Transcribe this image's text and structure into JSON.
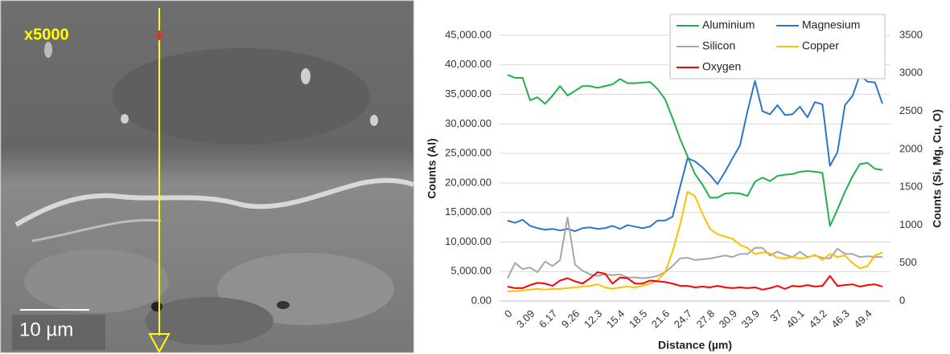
{
  "image": {
    "magnification": "x5000",
    "scale_bar": "10 µm"
  },
  "chart_data": {
    "type": "line",
    "y_label": "Counts (Al)",
    "y2_label": "Counts (Si, Mg, Cu, O)",
    "x_label": "Distance (µm)",
    "categories": [
      "0",
      null,
      null,
      "3.09",
      null,
      null,
      "6.17",
      null,
      null,
      "9.26",
      null,
      null,
      "12.3",
      null,
      null,
      "15.4",
      null,
      null,
      "18.5",
      null,
      null,
      "21.6",
      null,
      null,
      "24.7",
      null,
      null,
      "27.8",
      null,
      null,
      "30.9",
      null,
      null,
      "33.9",
      null,
      null,
      "37",
      null,
      null,
      "40.1",
      null,
      null,
      "43.2",
      null,
      null,
      "46.3",
      null,
      null,
      "49.4",
      null,
      null
    ],
    "series": [
      {
        "name": "Aluminium",
        "color": "#21b04b",
        "values": [
          38300,
          37800,
          37800,
          34000,
          34500,
          33400,
          34800,
          36400,
          34800,
          35600,
          36400,
          36400,
          36100,
          36400,
          36700,
          37600,
          36900,
          36900,
          37000,
          37100,
          35900,
          34200,
          31000,
          27500,
          24500,
          21500,
          19700,
          17500,
          17500,
          18200,
          18300,
          18200,
          17800,
          20200,
          20900,
          20300,
          21200,
          21400,
          21500,
          21900,
          22000,
          21900,
          21700,
          12700,
          15500,
          18500,
          21100,
          23200,
          23400,
          22400,
          22200
        ]
      },
      {
        "name": "Magnesium",
        "color": "#2e75c5",
        "axis": "y2",
        "values": [
          1060,
          1030,
          1070,
          990,
          960,
          940,
          950,
          930,
          950,
          920,
          960,
          970,
          950,
          960,
          990,
          950,
          1000,
          980,
          960,
          980,
          1060,
          1060,
          1110,
          1500,
          1880,
          1840,
          1760,
          1660,
          1540,
          1700,
          1880,
          2050,
          2500,
          2900,
          2500,
          2460,
          2580,
          2450,
          2460,
          2560,
          2420,
          2620,
          2590,
          1780,
          1960,
          2580,
          2700,
          2980,
          2890,
          2880,
          2600
        ]
      },
      {
        "name": "Silicon",
        "color": "#a6a6a6",
        "axis": "y2",
        "values": [
          300,
          500,
          420,
          440,
          380,
          520,
          460,
          540,
          1100,
          480,
          400,
          350,
          330,
          350,
          340,
          350,
          310,
          310,
          300,
          310,
          330,
          380,
          460,
          560,
          570,
          540,
          550,
          560,
          580,
          600,
          580,
          620,
          620,
          700,
          700,
          600,
          650,
          610,
          580,
          650,
          580,
          600,
          570,
          560,
          690,
          620,
          620,
          580,
          590,
          580,
          580
        ]
      },
      {
        "name": "Copper",
        "color": "#ffc000",
        "axis": "y2",
        "values": [
          130,
          130,
          140,
          150,
          160,
          150,
          160,
          160,
          170,
          180,
          190,
          200,
          220,
          180,
          160,
          180,
          190,
          180,
          200,
          230,
          270,
          380,
          650,
          1000,
          1440,
          1380,
          1150,
          950,
          880,
          850,
          820,
          740,
          700,
          620,
          640,
          630,
          570,
          560,
          580,
          560,
          570,
          610,
          540,
          620,
          580,
          600,
          500,
          430,
          460,
          600,
          640
        ]
      },
      {
        "name": "Oxygen",
        "color": "#ff0000",
        "axis": "y2",
        "values": [
          190,
          170,
          170,
          210,
          240,
          230,
          200,
          270,
          300,
          260,
          230,
          300,
          380,
          360,
          230,
          310,
          300,
          230,
          230,
          270,
          260,
          250,
          230,
          200,
          200,
          180,
          190,
          180,
          200,
          180,
          170,
          180,
          170,
          180,
          150,
          170,
          200,
          160,
          200,
          190,
          210,
          190,
          200,
          330,
          200,
          210,
          220,
          190,
          210,
          220,
          190
        ]
      }
    ],
    "ylim": [
      0,
      45000
    ],
    "yticks": [
      {
        "value": 0,
        "label": "0.00"
      },
      {
        "value": 5000,
        "label": "5,000.00"
      },
      {
        "value": 10000,
        "label": "10,000.00"
      },
      {
        "value": 15000,
        "label": "15,000.00"
      },
      {
        "value": 20000,
        "label": "20,000.00"
      },
      {
        "value": 25000,
        "label": "25,000.00"
      },
      {
        "value": 30000,
        "label": "30,000.00"
      },
      {
        "value": 35000,
        "label": "35,000.00"
      },
      {
        "value": 40000,
        "label": "40,000.00"
      },
      {
        "value": 45000,
        "label": "45,000.00"
      }
    ],
    "y2lim": [
      0,
      3500
    ],
    "y2ticks": [
      0,
      500,
      1000,
      1500,
      2000,
      2500,
      3000,
      3500
    ],
    "grid": true,
    "legend": "top-right"
  }
}
